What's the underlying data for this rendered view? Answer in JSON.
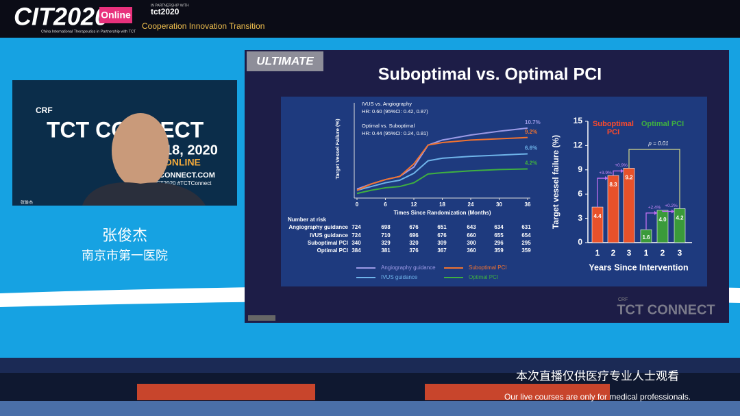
{
  "header": {
    "logo": "CIT2020",
    "badge": "Online",
    "tagline": "China International Therapeutics in Partnership with TCT",
    "partner_note": "IN PARTNERSHIP WITH",
    "partner": "tct2020",
    "motto": "Cooperation Innovation Transition"
  },
  "webcam": {
    "brand": "CRF",
    "backdrop_title": "TCT CONNECT",
    "date": "18, 2020",
    "online": "ONLINE",
    "site": "CONNECT.COM",
    "hashtag": "CT2020 #TCTConnect",
    "tag": "张俊杰"
  },
  "speaker": {
    "name": "张俊杰",
    "affiliation": "南京市第一医院"
  },
  "slide": {
    "tag": "ULTIMATE",
    "title": "Suboptimal vs. Optimal PCI",
    "risk_table": {
      "title": "Number at risk",
      "rows": [
        [
          "Angiography guidance",
          724,
          698,
          676,
          651,
          643,
          634,
          631
        ],
        [
          "IVUS guidance",
          724,
          710,
          696,
          676,
          660,
          655,
          654
        ],
        [
          "Suboptimal PCI",
          340,
          329,
          320,
          309,
          300,
          296,
          295
        ],
        [
          "Optimal PCI",
          384,
          381,
          376,
          367,
          360,
          359,
          359
        ]
      ]
    },
    "watermark_brand": "CRF",
    "watermark": "TCT CONNECT"
  },
  "chart_data": [
    {
      "type": "line",
      "x": [
        0,
        3,
        6,
        9,
        12,
        15,
        18,
        24,
        30,
        36
      ],
      "series": [
        {
          "name": "Angiography guidance",
          "color": "#9c9ae6",
          "values": [
            1.0,
            1.8,
            2.5,
            3.0,
            4.5,
            8.0,
            8.8,
            9.6,
            10.2,
            10.7
          ],
          "end_label": "10.7%"
        },
        {
          "name": "IVUS guidance",
          "color": "#6fb4ea",
          "values": [
            0.8,
            1.4,
            2.0,
            2.4,
            3.5,
            5.5,
            5.9,
            6.2,
            6.4,
            6.6
          ],
          "end_label": "6.6%"
        },
        {
          "name": "Suboptimal PCI",
          "color": "#f27330",
          "values": [
            0.8,
            1.8,
            2.5,
            3.0,
            5.0,
            8.0,
            8.4,
            8.8,
            9.0,
            9.2
          ],
          "end_label": "9.2%"
        },
        {
          "name": "Optimal PCI",
          "color": "#3fb040",
          "values": [
            0.3,
            0.8,
            1.2,
            1.4,
            2.0,
            3.4,
            3.6,
            3.9,
            4.1,
            4.2
          ],
          "end_label": "4.2%"
        }
      ],
      "xlim": [
        0,
        36
      ],
      "xticks": [
        0,
        6,
        12,
        18,
        24,
        30,
        36
      ],
      "ylim": [
        0,
        12
      ],
      "xlabel": "Times Since Randomization (Months)",
      "ylabel": "Target Vessel Failure (%)",
      "annotations": [
        "IVUS vs. Angiography",
        "HR: 0.60 (95%CI: 0.42, 0.87)",
        "Optimal vs. Suboptimal",
        "HR: 0.44 (95%CI: 0.24, 0.81)"
      ]
    },
    {
      "type": "bar",
      "categories": [
        "1",
        "2",
        "3"
      ],
      "series": [
        {
          "name": "Suboptimal PCI",
          "color": "#e8512a",
          "label_color": "#ff4a2a",
          "values": [
            4.4,
            8.3,
            9.2
          ],
          "value_labels": [
            "4.4",
            "8.3",
            "9.2"
          ],
          "increments": [
            "+3.9%",
            "+0.9%"
          ]
        },
        {
          "name": "Optimal PCI",
          "color": "#3a9a3a",
          "label_color": "#3fb040",
          "values": [
            1.6,
            4.0,
            4.2
          ],
          "value_labels": [
            "1.6",
            "4.0",
            "4.2"
          ],
          "increments": [
            "+2.4%",
            "+0.2%"
          ]
        }
      ],
      "ylim": [
        0,
        15
      ],
      "yticks": [
        0,
        3,
        6,
        9,
        12,
        15
      ],
      "ylabel": "Target vessel failure (%)",
      "xlabel": "Years Since Intervention",
      "p_value": "p = 0.01"
    }
  ],
  "caption": {
    "zh": "本次直播仅供医疗专业人士观看",
    "en": "Our live courses are only for medical professionals."
  }
}
